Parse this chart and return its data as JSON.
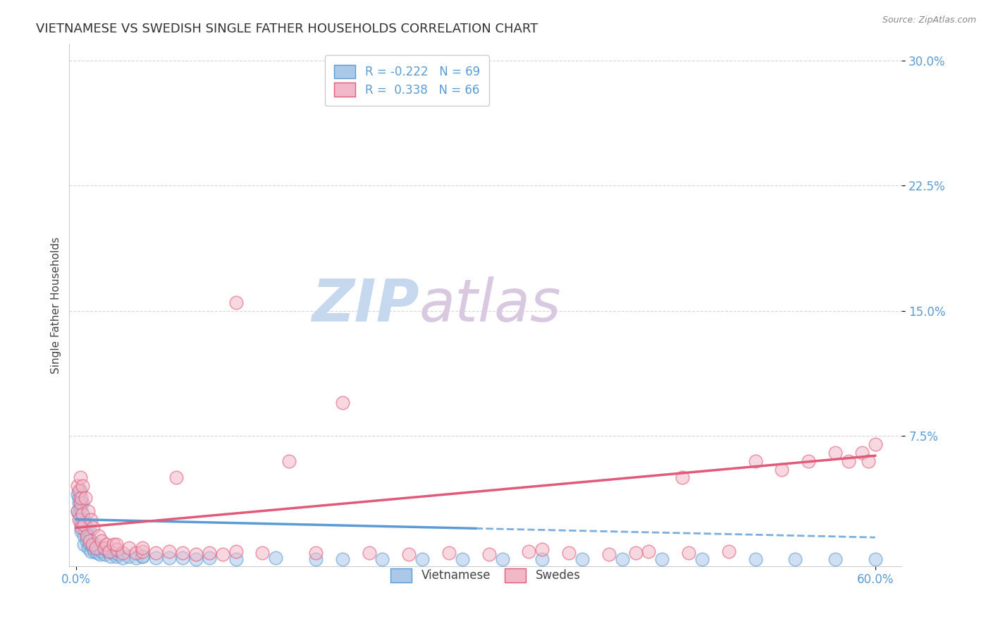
{
  "title": "VIETNAMESE VS SWEDISH SINGLE FATHER HOUSEHOLDS CORRELATION CHART",
  "source": "Source: ZipAtlas.com",
  "xlabel": "",
  "ylabel": "Single Father Households",
  "xlim": [
    -0.005,
    0.62
  ],
  "ylim": [
    -0.003,
    0.31
  ],
  "xticks": [
    0.0,
    0.6
  ],
  "xtick_labels": [
    "0.0%",
    "60.0%"
  ],
  "yticks": [
    0.075,
    0.15,
    0.225,
    0.3
  ],
  "ytick_labels": [
    "7.5%",
    "15.0%",
    "22.5%",
    "30.0%"
  ],
  "title_color": "#333333",
  "title_fontsize": 13,
  "axis_label_color": "#555555",
  "tick_color": "#5b9bd5",
  "background_color": "#ffffff",
  "grid_color": "#cccccc",
  "watermark_color": "#dce8f5",
  "series": [
    {
      "name": "Vietnamese",
      "line_color": "#5b9bd5",
      "scatter_facecolor": "#aac8e8",
      "scatter_edgecolor": "#5b9bd5",
      "R": -0.222,
      "N": 69,
      "line_style": "-",
      "line_style_end": "--",
      "slope": -0.018,
      "intercept": 0.025
    },
    {
      "name": "Swedes",
      "line_color": "#e05a7a",
      "scatter_facecolor": "#f2b8c8",
      "scatter_edgecolor": "#e05a7a",
      "R": 0.338,
      "N": 66,
      "line_style": "-",
      "slope": 0.072,
      "intercept": 0.02
    }
  ],
  "viet_x": [
    0.001,
    0.001,
    0.002,
    0.002,
    0.002,
    0.003,
    0.003,
    0.003,
    0.004,
    0.004,
    0.004,
    0.005,
    0.005,
    0.005,
    0.006,
    0.006,
    0.006,
    0.007,
    0.007,
    0.008,
    0.008,
    0.009,
    0.009,
    0.01,
    0.01,
    0.011,
    0.011,
    0.012,
    0.013,
    0.014,
    0.015,
    0.016,
    0.017,
    0.018,
    0.019,
    0.02,
    0.022,
    0.024,
    0.026,
    0.028,
    0.03,
    0.032,
    0.035,
    0.04,
    0.045,
    0.05,
    0.06,
    0.07,
    0.08,
    0.09,
    0.1,
    0.12,
    0.15,
    0.18,
    0.2,
    0.23,
    0.26,
    0.29,
    0.32,
    0.35,
    0.38,
    0.41,
    0.44,
    0.47,
    0.51,
    0.54,
    0.57,
    0.6,
    0.05
  ],
  "viet_y": [
    0.03,
    0.04,
    0.035,
    0.028,
    0.038,
    0.025,
    0.032,
    0.042,
    0.022,
    0.03,
    0.018,
    0.028,
    0.02,
    0.035,
    0.015,
    0.025,
    0.01,
    0.018,
    0.022,
    0.012,
    0.02,
    0.008,
    0.015,
    0.01,
    0.018,
    0.006,
    0.012,
    0.01,
    0.008,
    0.006,
    0.01,
    0.005,
    0.008,
    0.004,
    0.006,
    0.008,
    0.004,
    0.006,
    0.003,
    0.005,
    0.003,
    0.004,
    0.002,
    0.003,
    0.002,
    0.003,
    0.002,
    0.002,
    0.002,
    0.001,
    0.002,
    0.001,
    0.002,
    0.001,
    0.001,
    0.001,
    0.001,
    0.001,
    0.001,
    0.001,
    0.001,
    0.001,
    0.001,
    0.001,
    0.001,
    0.001,
    0.001,
    0.001,
    0.003
  ],
  "swe_x": [
    0.001,
    0.001,
    0.002,
    0.002,
    0.003,
    0.003,
    0.004,
    0.004,
    0.005,
    0.005,
    0.006,
    0.007,
    0.008,
    0.009,
    0.01,
    0.011,
    0.012,
    0.013,
    0.015,
    0.017,
    0.019,
    0.021,
    0.023,
    0.025,
    0.028,
    0.031,
    0.035,
    0.04,
    0.045,
    0.05,
    0.06,
    0.07,
    0.08,
    0.09,
    0.1,
    0.11,
    0.12,
    0.14,
    0.16,
    0.18,
    0.2,
    0.22,
    0.25,
    0.28,
    0.31,
    0.34,
    0.37,
    0.4,
    0.43,
    0.46,
    0.49,
    0.51,
    0.53,
    0.55,
    0.57,
    0.58,
    0.59,
    0.595,
    0.6,
    0.03,
    0.05,
    0.075,
    0.12,
    0.35,
    0.42,
    0.455
  ],
  "swe_y": [
    0.045,
    0.03,
    0.042,
    0.025,
    0.05,
    0.035,
    0.038,
    0.02,
    0.045,
    0.028,
    0.022,
    0.038,
    0.015,
    0.03,
    0.012,
    0.025,
    0.01,
    0.02,
    0.008,
    0.015,
    0.012,
    0.008,
    0.01,
    0.006,
    0.01,
    0.007,
    0.005,
    0.008,
    0.005,
    0.006,
    0.005,
    0.006,
    0.005,
    0.004,
    0.005,
    0.004,
    0.006,
    0.005,
    0.06,
    0.005,
    0.095,
    0.005,
    0.004,
    0.005,
    0.004,
    0.006,
    0.005,
    0.004,
    0.006,
    0.005,
    0.006,
    0.06,
    0.055,
    0.06,
    0.065,
    0.06,
    0.065,
    0.06,
    0.07,
    0.01,
    0.008,
    0.05,
    0.155,
    0.007,
    0.005,
    0.05
  ]
}
